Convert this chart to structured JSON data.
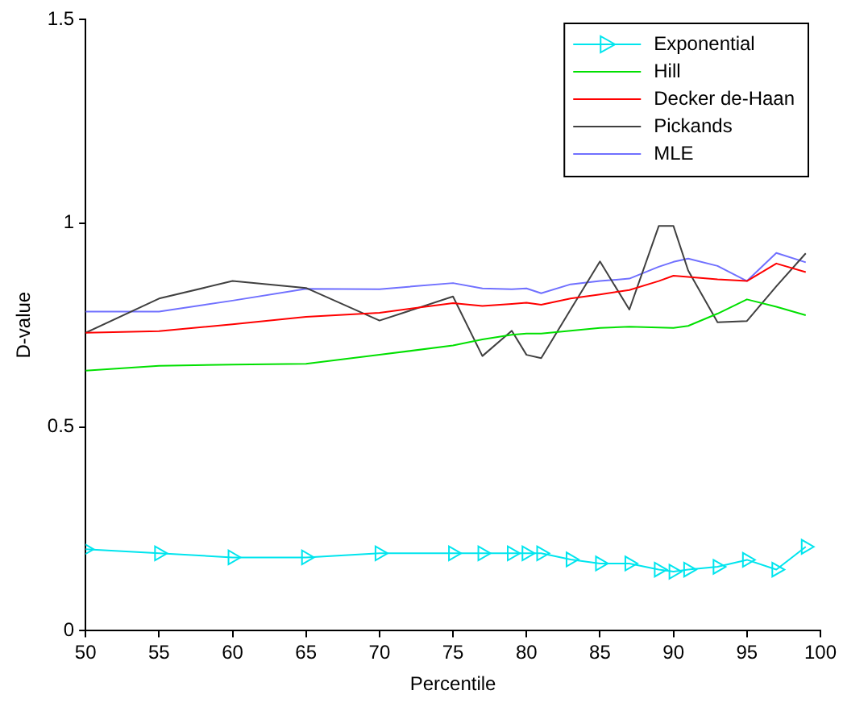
{
  "chart_data": {
    "type": "line",
    "xlabel": "Percentile",
    "ylabel": "D-value",
    "xlim": [
      50,
      100
    ],
    "xticks": [
      50,
      55,
      60,
      65,
      70,
      75,
      80,
      85,
      90,
      95,
      100
    ],
    "ylim": [
      0,
      1.5
    ],
    "yticks": [
      0,
      0.5,
      1,
      1.5
    ],
    "grid": false,
    "legend": "top right",
    "line_style": "solid",
    "x": [
      50,
      55,
      60,
      65,
      70,
      75,
      77,
      79,
      80,
      81,
      83,
      85,
      87,
      89,
      90,
      91,
      93,
      95,
      97,
      99
    ],
    "series": [
      {
        "name": "Exponential",
        "color": "#00e5ee",
        "marker": "triangle",
        "values": [
          0.2,
          0.19,
          0.18,
          0.18,
          0.19,
          0.19,
          0.19,
          0.19,
          0.19,
          0.19,
          0.175,
          0.165,
          0.165,
          0.15,
          0.145,
          0.15,
          0.157,
          0.174,
          0.15,
          0.206
        ]
      },
      {
        "name": "Hill",
        "color": "#00e000",
        "marker": "none",
        "values": [
          0.638,
          0.65,
          0.653,
          0.655,
          0.677,
          0.7,
          0.715,
          0.726,
          0.729,
          0.729,
          0.736,
          0.743,
          0.746,
          0.744,
          0.743,
          0.748,
          0.778,
          0.813,
          0.795,
          0.774
        ]
      },
      {
        "name": "Decker de-Haan",
        "color": "#ff0000",
        "marker": "none",
        "values": [
          0.731,
          0.735,
          0.752,
          0.77,
          0.78,
          0.804,
          0.797,
          0.802,
          0.805,
          0.8,
          0.815,
          0.825,
          0.836,
          0.858,
          0.871,
          0.868,
          0.862,
          0.858,
          0.901,
          0.88
        ]
      },
      {
        "name": "Pickands",
        "color": "#404040",
        "marker": "none",
        "values": [
          0.731,
          0.815,
          0.858,
          0.841,
          0.761,
          0.82,
          0.674,
          0.736,
          0.677,
          0.669,
          0.788,
          0.906,
          0.788,
          0.993,
          0.993,
          0.884,
          0.757,
          0.76,
          0.845,
          0.926
        ]
      },
      {
        "name": "MLE",
        "color": "#7070ff",
        "marker": "none",
        "values": [
          0.783,
          0.783,
          0.81,
          0.839,
          0.838,
          0.853,
          0.84,
          0.838,
          0.84,
          0.828,
          0.85,
          0.858,
          0.864,
          0.893,
          0.905,
          0.913,
          0.895,
          0.858,
          0.927,
          0.904
        ]
      }
    ]
  }
}
